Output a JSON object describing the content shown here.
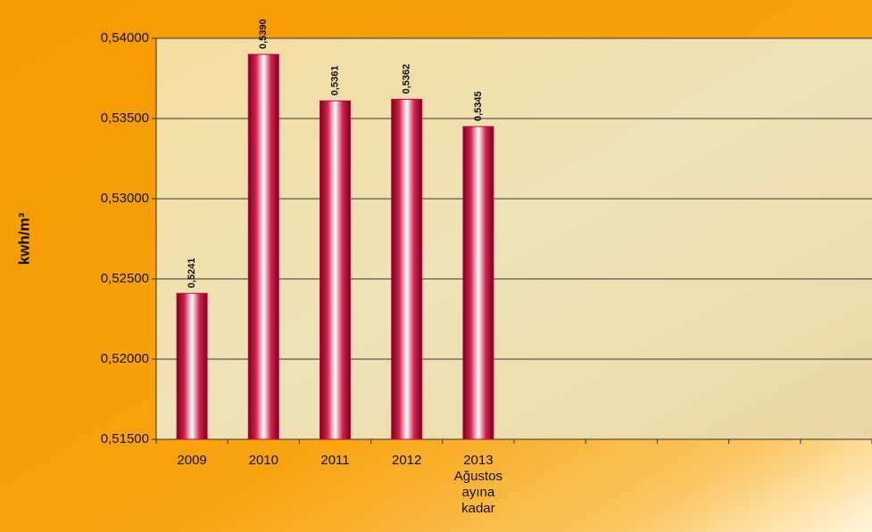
{
  "chart_data": {
    "type": "bar",
    "y_label": "kwh/m³",
    "categories": [
      "2009",
      "2010",
      "2011",
      "2012",
      "2013 Ağustos ayına kadar",
      null,
      null,
      null,
      null,
      null
    ],
    "values": [
      0.5241,
      0.539,
      0.5361,
      0.5362,
      0.5345,
      null,
      null,
      null,
      null,
      null
    ],
    "value_labels": [
      "0,5241",
      "0,5390",
      "0,5361",
      "0,5362",
      "0,5345",
      null,
      null,
      null,
      null,
      null
    ],
    "color": "#b0103a",
    "ylim": [
      0.515,
      0.54
    ],
    "yticks": [
      {
        "value": 0.515,
        "label": "0,51500"
      },
      {
        "value": 0.52,
        "label": "0,52000"
      },
      {
        "value": 0.525,
        "label": "0,52500"
      },
      {
        "value": 0.53,
        "label": "0,53000"
      },
      {
        "value": 0.535,
        "label": "0,53500"
      },
      {
        "value": 0.54,
        "label": "0,54000"
      }
    ],
    "grid": true
  }
}
